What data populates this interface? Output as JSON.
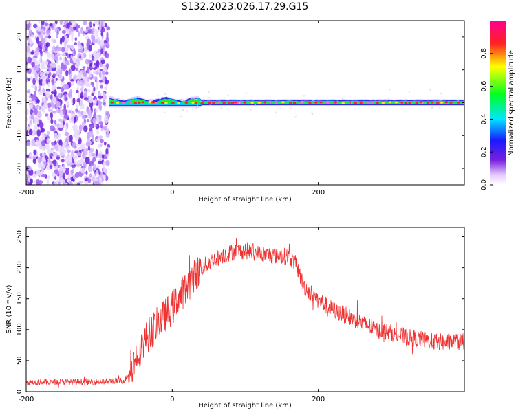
{
  "chart_data": [
    {
      "type": "heatmap",
      "title": "S132.2023.026.17.29.G15",
      "xlabel": "Height of straight line (km)",
      "ylabel": "Frequency (Hz)",
      "xlim": [
        -200,
        400
      ],
      "ylim": [
        -25,
        25
      ],
      "x_ticks": [
        -200,
        0,
        200
      ],
      "y_ticks": [
        -20,
        -10,
        0,
        10,
        20
      ],
      "noise_region_x": [
        -200,
        -87
      ],
      "signal_line_frequency_hz": 0,
      "colorbar": {
        "label": "Normalized spectral amplitude",
        "range": [
          0,
          1
        ],
        "ticks": [
          0.0,
          0.2,
          0.4,
          0.6,
          0.8
        ],
        "colormap": "rainbow (white to purple, blue, cyan, green, yellow, red, magenta)"
      }
    },
    {
      "type": "line",
      "xlabel": "Height of straight line (km)",
      "ylabel": "SNR (10 * v/v)",
      "xlim": [
        -200,
        400
      ],
      "ylim": [
        0,
        265
      ],
      "x_ticks": [
        -200,
        0,
        200
      ],
      "y_ticks": [
        0,
        50,
        100,
        150,
        200,
        250
      ],
      "color": "#ee3333",
      "series_profile": {
        "x": [
          -205,
          -100,
          -65,
          -55,
          -40,
          -20,
          0,
          20,
          40,
          60,
          80,
          100,
          120,
          140,
          160,
          170,
          180,
          200,
          220,
          240,
          260,
          280,
          300,
          320,
          340,
          360,
          380,
          400
        ],
        "y": [
          15,
          16,
          18,
          40,
          80,
          110,
          135,
          170,
          200,
          215,
          225,
          228,
          222,
          220,
          218,
          205,
          170,
          148,
          132,
          122,
          110,
          100,
          95,
          88,
          84,
          80,
          80,
          80
        ]
      }
    }
  ]
}
